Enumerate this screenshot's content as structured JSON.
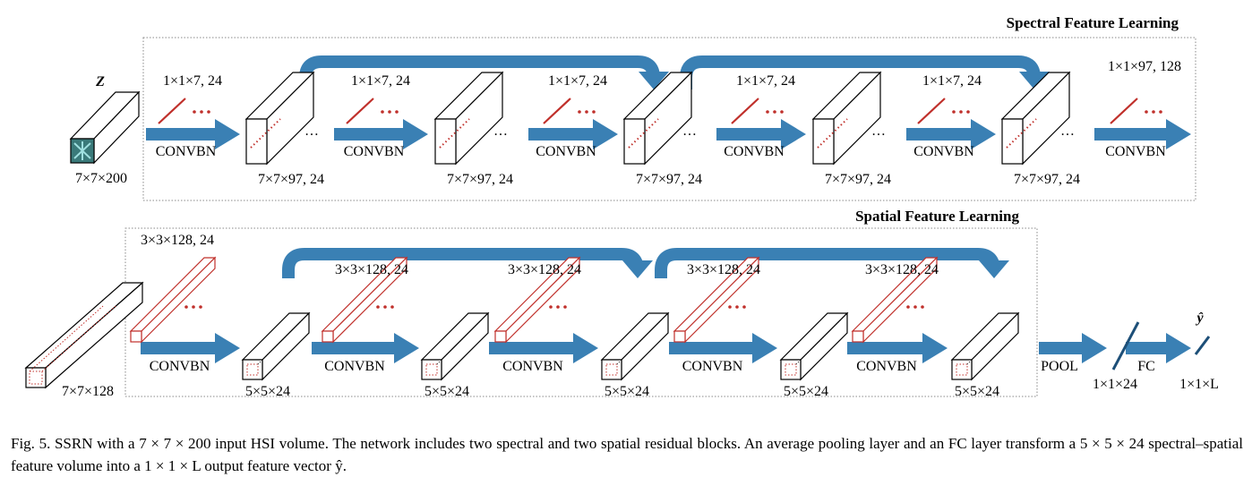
{
  "diagram": {
    "spectral_title": "Spectral Feature Learning",
    "spatial_title": "Spatial Feature Learning",
    "input_symbol": "Z",
    "input_size": "7×7×200",
    "conv_label": "CONVBN",
    "ellipsis": "…",
    "spectral_kernels": [
      "1×1×7, 24",
      "1×1×7, 24",
      "1×1×7, 24",
      "1×1×7, 24",
      "1×1×7, 24",
      "1×1×97, 128"
    ],
    "spectral_outputs": [
      "7×7×97, 24",
      "7×7×97, 24",
      "7×7×97, 24",
      "7×7×97, 24",
      "7×7×97, 24"
    ],
    "spatial_input_size": "7×7×128",
    "spatial_kernels": [
      "3×3×128, 24",
      "3×3×128, 24",
      "3×3×128, 24",
      "3×3×128, 24",
      "3×3×128, 24"
    ],
    "spatial_outputs": [
      "5×5×24",
      "5×5×24",
      "5×5×24",
      "5×5×24",
      "5×5×24"
    ],
    "pool_label": "POOL",
    "pool_output": "1×1×24",
    "fc_label": "FC",
    "fc_output": "1×1×L",
    "output_symbol": "ŷ",
    "colors": {
      "arrow": "#3a80b4",
      "kernel": "#c0302b",
      "box": "#888888",
      "cube_inner": "#3a7a7a"
    }
  },
  "caption": "Fig. 5.    SSRN with a 7 × 7 × 200 input HSI volume. The network includes two spectral and two spatial residual blocks. An average pooling layer and an FC layer transform a 5 × 5 × 24 spectral–spatial feature volume into a 1 × 1 × L output feature vector ŷ."
}
